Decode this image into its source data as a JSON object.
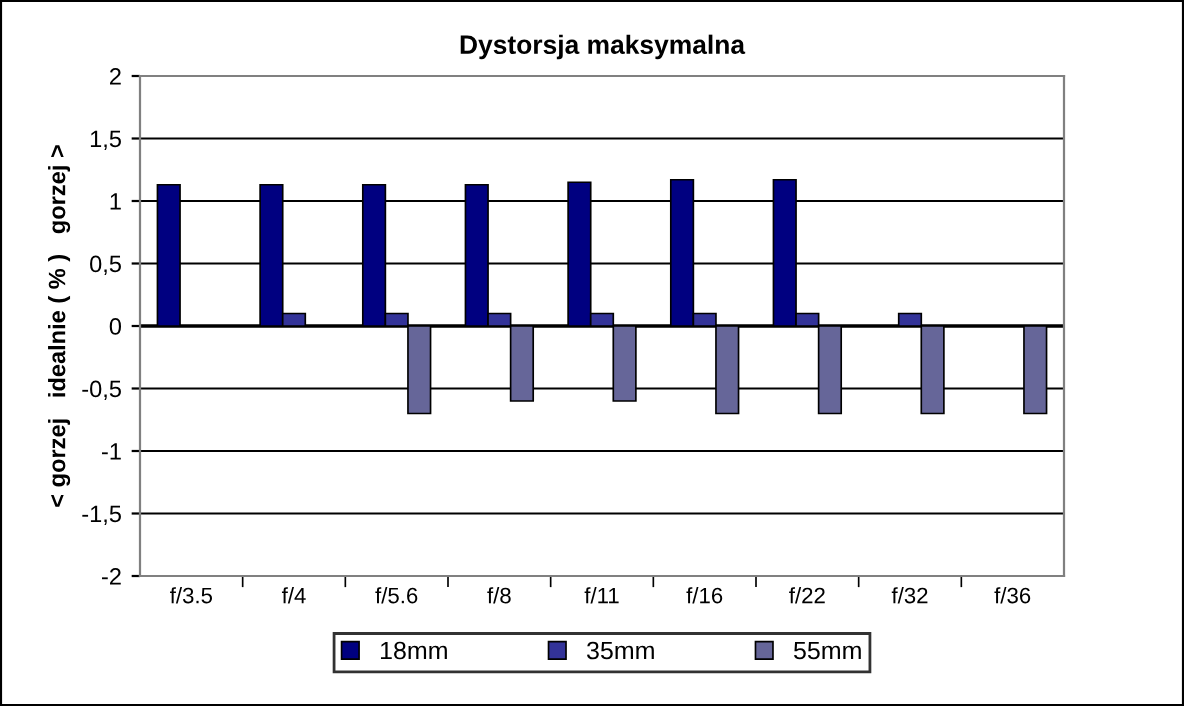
{
  "chart_data": {
    "type": "bar",
    "title": "Dystorsja maksymalna",
    "ylabel": "< gorzej   idealnie ( % )   gorzej >",
    "categories": [
      "f/3.5",
      "f/4",
      "f/5.6",
      "f/8",
      "f/11",
      "f/16",
      "f/22",
      "f/32",
      "f/36"
    ],
    "series": [
      {
        "name": "18mm",
        "color": "#000080",
        "values": [
          1.13,
          1.13,
          1.13,
          1.13,
          1.15,
          1.17,
          1.17,
          null,
          null
        ]
      },
      {
        "name": "35mm",
        "color": "#333399",
        "values": [
          null,
          0.1,
          0.1,
          0.1,
          0.1,
          0.1,
          0.1,
          0.1,
          null
        ]
      },
      {
        "name": "55mm",
        "color": "#666699",
        "values": [
          null,
          null,
          -0.7,
          -0.6,
          -0.6,
          -0.7,
          -0.7,
          -0.7,
          -0.7
        ]
      }
    ],
    "ylim": [
      -2,
      2
    ],
    "yticks": [
      -2,
      {
        "value": -1.5,
        "label": "-1,5"
      },
      -1,
      {
        "value": -0.5,
        "label": "-0,5"
      },
      0,
      {
        "value": 0.5,
        "label": "0,5"
      },
      1,
      {
        "value": 1.5,
        "label": "1,5"
      },
      2
    ],
    "grid": "y",
    "legend": "bottom"
  }
}
